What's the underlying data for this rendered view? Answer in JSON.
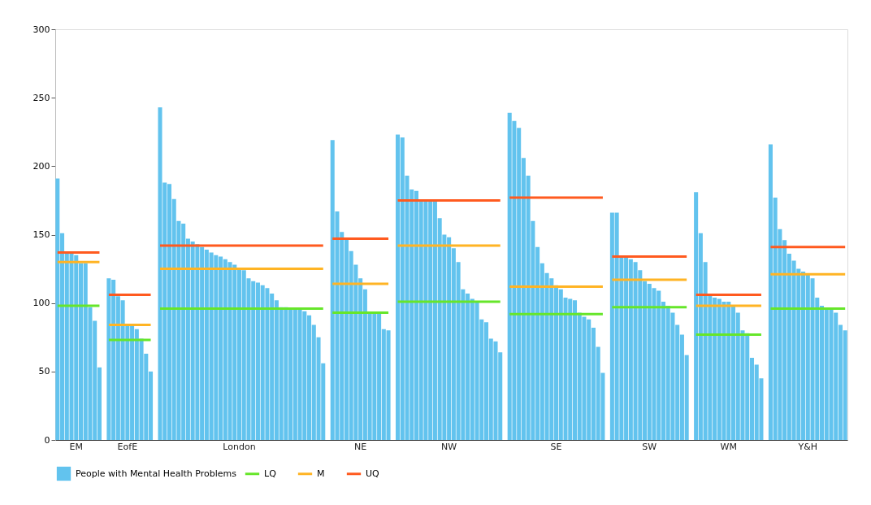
{
  "chart_data": {
    "type": "bar",
    "categories": [
      null,
      null,
      null,
      null,
      "EM",
      null,
      null,
      null,
      null,
      null,
      null,
      null,
      null,
      null,
      null,
      "EofE",
      null,
      null,
      null,
      null,
      null,
      null,
      null,
      null,
      null,
      null,
      null,
      null,
      null,
      null,
      null,
      null,
      null,
      null,
      null,
      null,
      null,
      null,
      null,
      "London",
      null,
      null,
      null,
      null,
      null,
      null,
      null,
      null,
      null,
      null,
      null,
      null,
      null,
      null,
      null,
      null,
      null,
      null,
      null,
      null,
      null,
      null,
      null,
      null,
      null,
      "NE",
      null,
      null,
      null,
      null,
      null,
      null,
      null,
      null,
      null,
      null,
      null,
      null,
      null,
      null,
      null,
      null,
      null,
      null,
      "NW",
      null,
      null,
      null,
      null,
      null,
      null,
      null,
      null,
      null,
      null,
      null,
      null,
      null,
      null,
      null,
      null,
      null,
      null,
      null,
      null,
      null,
      null,
      "SE",
      null,
      null,
      null,
      null,
      null,
      null,
      null,
      null,
      null,
      null,
      null,
      null,
      null,
      null,
      null,
      null,
      null,
      null,
      null,
      "SW",
      null,
      null,
      null,
      null,
      null,
      null,
      null,
      null,
      null,
      null,
      null,
      null,
      null,
      null,
      null,
      null,
      "WM",
      null,
      null,
      null,
      null,
      null,
      null,
      null,
      null,
      null,
      null,
      null,
      null,
      null,
      null,
      null,
      null,
      "Y&H",
      null,
      null,
      null,
      null,
      null,
      null,
      null,
      null
    ],
    "ylim": [
      0,
      300
    ],
    "yticks": [
      0,
      50,
      100,
      150,
      200,
      250,
      300
    ],
    "grid": false,
    "legend": "bottom",
    "series": [
      {
        "name": "People with Mental Health Problems",
        "color": "#62c3ee",
        "values": [
          191,
          151,
          137,
          136,
          135,
          129,
          129,
          97,
          87,
          53,
          null,
          118,
          117,
          105,
          102,
          85,
          84,
          81,
          74,
          63,
          50,
          null,
          243,
          188,
          187,
          176,
          160,
          158,
          147,
          145,
          143,
          141,
          139,
          137,
          135,
          134,
          132,
          130,
          128,
          126,
          124,
          118,
          116,
          115,
          113,
          111,
          107,
          102,
          97,
          97,
          96,
          96,
          95,
          94,
          91,
          84,
          75,
          56,
          null,
          219,
          167,
          152,
          147,
          138,
          128,
          118,
          110,
          93,
          93,
          93,
          81,
          80,
          null,
          223,
          221,
          193,
          183,
          182,
          175,
          175,
          175,
          175,
          162,
          150,
          148,
          140,
          130,
          110,
          107,
          103,
          101,
          88,
          86,
          74,
          72,
          64,
          null,
          239,
          233,
          228,
          206,
          193,
          160,
          141,
          129,
          122,
          118,
          113,
          110,
          104,
          103,
          102,
          93,
          90,
          88,
          82,
          68,
          49,
          null,
          166,
          166,
          133,
          133,
          132,
          130,
          124,
          116,
          114,
          111,
          109,
          101,
          98,
          93,
          84,
          77,
          62,
          null,
          181,
          151,
          130,
          106,
          104,
          103,
          101,
          101,
          98,
          93,
          80,
          78,
          60,
          55,
          45,
          null,
          216,
          177,
          154,
          146,
          136,
          131,
          125,
          123,
          121,
          118,
          104,
          98,
          96,
          96,
          93,
          84,
          80
        ]
      },
      {
        "name": "LQ",
        "type": "line",
        "color": "#66e62a",
        "values": [
          98,
          98,
          98,
          98,
          98,
          98,
          98,
          98,
          98,
          98,
          null,
          73,
          73,
          73,
          73,
          73,
          73,
          73,
          73,
          73,
          73,
          null,
          96,
          96,
          96,
          96,
          96,
          96,
          96,
          96,
          96,
          96,
          96,
          96,
          96,
          96,
          96,
          96,
          96,
          96,
          96,
          96,
          96,
          96,
          96,
          96,
          96,
          96,
          96,
          96,
          96,
          96,
          96,
          96,
          96,
          96,
          96,
          96,
          null,
          93,
          93,
          93,
          93,
          93,
          93,
          93,
          93,
          93,
          93,
          93,
          93,
          93,
          null,
          101,
          101,
          101,
          101,
          101,
          101,
          101,
          101,
          101,
          101,
          101,
          101,
          101,
          101,
          101,
          101,
          101,
          101,
          101,
          101,
          101,
          101,
          101,
          null,
          92,
          92,
          92,
          92,
          92,
          92,
          92,
          92,
          92,
          92,
          92,
          92,
          92,
          92,
          92,
          92,
          92,
          92,
          92,
          92,
          92,
          null,
          97,
          97,
          97,
          97,
          97,
          97,
          97,
          97,
          97,
          97,
          97,
          97,
          97,
          97,
          97,
          97,
          97,
          null,
          77,
          77,
          77,
          77,
          77,
          77,
          77,
          77,
          77,
          77,
          77,
          77,
          77,
          77,
          77,
          null,
          96,
          96,
          96,
          96,
          96,
          96,
          96,
          96,
          96,
          96,
          96,
          96,
          96,
          96,
          96,
          96,
          96
        ]
      },
      {
        "name": "M",
        "type": "line",
        "color": "#ffb424",
        "values": [
          130,
          130,
          130,
          130,
          130,
          130,
          130,
          130,
          130,
          130,
          null,
          84,
          84,
          84,
          84,
          84,
          84,
          84,
          84,
          84,
          84,
          null,
          125,
          125,
          125,
          125,
          125,
          125,
          125,
          125,
          125,
          125,
          125,
          125,
          125,
          125,
          125,
          125,
          125,
          125,
          125,
          125,
          125,
          125,
          125,
          125,
          125,
          125,
          125,
          125,
          125,
          125,
          125,
          125,
          125,
          125,
          125,
          125,
          null,
          114,
          114,
          114,
          114,
          114,
          114,
          114,
          114,
          114,
          114,
          114,
          114,
          114,
          null,
          142,
          142,
          142,
          142,
          142,
          142,
          142,
          142,
          142,
          142,
          142,
          142,
          142,
          142,
          142,
          142,
          142,
          142,
          142,
          142,
          142,
          142,
          142,
          null,
          112,
          112,
          112,
          112,
          112,
          112,
          112,
          112,
          112,
          112,
          112,
          112,
          112,
          112,
          112,
          112,
          112,
          112,
          112,
          112,
          112,
          null,
          117,
          117,
          117,
          117,
          117,
          117,
          117,
          117,
          117,
          117,
          117,
          117,
          117,
          117,
          117,
          117,
          117,
          null,
          98,
          98,
          98,
          98,
          98,
          98,
          98,
          98,
          98,
          98,
          98,
          98,
          98,
          98,
          98,
          null,
          121,
          121,
          121,
          121,
          121,
          121,
          121,
          121,
          121,
          121,
          121,
          121,
          121,
          121,
          121,
          121,
          121
        ]
      },
      {
        "name": "UQ",
        "type": "line",
        "color": "#ff5a1f",
        "values": [
          137,
          137,
          137,
          137,
          137,
          137,
          137,
          137,
          137,
          137,
          null,
          106,
          106,
          106,
          106,
          106,
          106,
          106,
          106,
          106,
          106,
          null,
          142,
          142,
          142,
          142,
          142,
          142,
          142,
          142,
          142,
          142,
          142,
          142,
          142,
          142,
          142,
          142,
          142,
          142,
          142,
          142,
          142,
          142,
          142,
          142,
          142,
          142,
          142,
          142,
          142,
          142,
          142,
          142,
          142,
          142,
          142,
          142,
          null,
          147,
          147,
          147,
          147,
          147,
          147,
          147,
          147,
          147,
          147,
          147,
          147,
          147,
          null,
          175,
          175,
          175,
          175,
          175,
          175,
          175,
          175,
          175,
          175,
          175,
          175,
          175,
          175,
          175,
          175,
          175,
          175,
          175,
          175,
          175,
          175,
          175,
          null,
          177,
          177,
          177,
          177,
          177,
          177,
          177,
          177,
          177,
          177,
          177,
          177,
          177,
          177,
          177,
          177,
          177,
          177,
          177,
          177,
          177,
          null,
          134,
          134,
          134,
          134,
          134,
          134,
          134,
          134,
          134,
          134,
          134,
          134,
          134,
          134,
          134,
          134,
          134,
          null,
          106,
          106,
          106,
          106,
          106,
          106,
          106,
          106,
          106,
          106,
          106,
          106,
          106,
          106,
          106,
          null,
          141,
          141,
          141,
          141,
          141,
          141,
          141,
          141,
          141,
          141,
          141,
          141,
          141,
          141,
          141,
          141,
          141
        ]
      }
    ]
  }
}
